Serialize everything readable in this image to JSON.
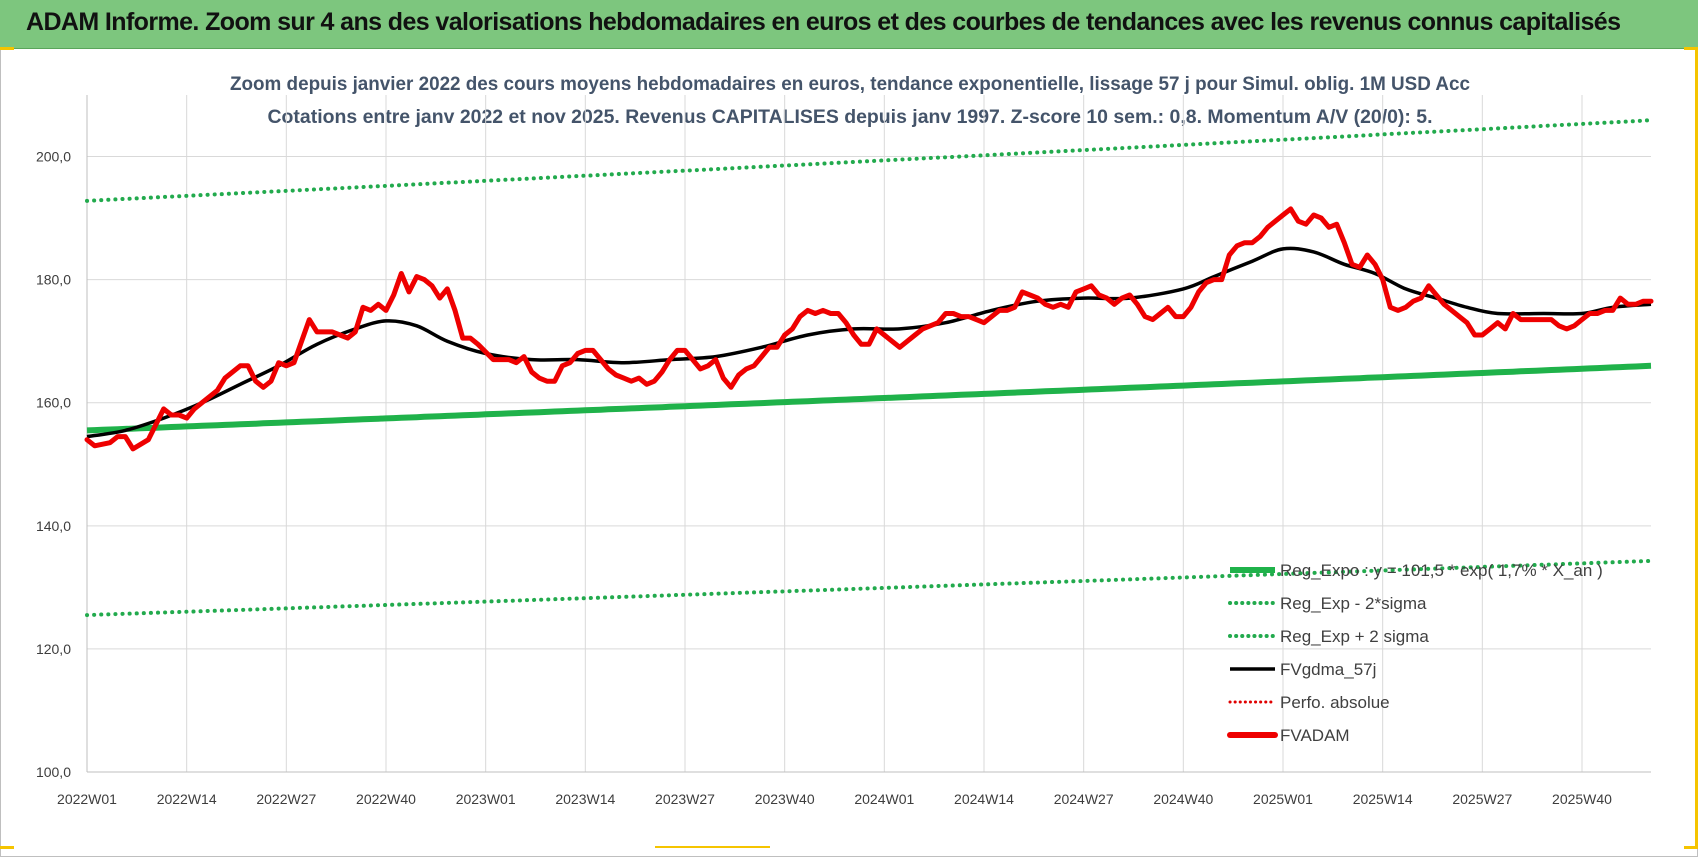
{
  "banner": {
    "title": "ADAM Informe. Zoom sur 4 ans des valorisations hebdomadaires en euros et des courbes de tendances avec les revenus connus capitalisés"
  },
  "colors": {
    "banner_bg": "#7dc67e",
    "reg_expo": "#1fb24a",
    "sigma_bands": "#22aa4d",
    "fvgdma": "#000000",
    "perfo": "#e00000",
    "fvadam": "#ee0000",
    "accent": "#f5c400"
  },
  "chart_data": {
    "type": "line",
    "title_line1": "Zoom depuis janvier 2022 des cours moyens hebdomadaires en euros, tendance exponentielle, lissage 57 j pour Simul. oblig. 1M USD Acc",
    "title_line2": "Cotations entre janv 2022 et nov 2025. Revenus CAPITALISES depuis janv 1997. Z-score 10 sem.: 0,8. Momentum A/V (20/0): 5.",
    "ylim": [
      100,
      210
    ],
    "yticks": [
      "100,0",
      "120,0",
      "140,0",
      "160,0",
      "180,0",
      "200,0"
    ],
    "ytick_values": [
      100,
      120,
      140,
      160,
      180,
      200
    ],
    "x_count": 205,
    "xticks": [
      "2022W01",
      "2022W14",
      "2022W27",
      "2022W40",
      "2023W01",
      "2023W14",
      "2023W27",
      "2023W40",
      "2024W01",
      "2024W14",
      "2024W27",
      "2024W40",
      "2025W01",
      "2025W14",
      "2025W27",
      "2025W40"
    ],
    "xtick_index": [
      0,
      13,
      26,
      39,
      52,
      65,
      78,
      91,
      104,
      117,
      130,
      143,
      156,
      169,
      182,
      195
    ],
    "legend": {
      "position": "right-bottom",
      "entries": [
        {
          "key": "reg_expo",
          "label": "Reg_Expo : y = 101,5 * exp( 1,7% * X_an )"
        },
        {
          "key": "reg_minus",
          "label": "Reg_Exp - 2*sigma"
        },
        {
          "key": "reg_plus",
          "label": "Reg_Exp + 2 sigma"
        },
        {
          "key": "fvgdma",
          "label": "FVgdma_57j"
        },
        {
          "key": "perfo",
          "label": "Perfo. absolue"
        },
        {
          "key": "fvadam",
          "label": "FVADAM"
        }
      ]
    },
    "series": {
      "reg_expo": {
        "name": "Reg_Expo",
        "start": 155.5,
        "end": 166.0
      },
      "reg_minus": {
        "name": "Reg_Exp - 2*sigma",
        "start": 125.5,
        "end": 134.3
      },
      "reg_plus": {
        "name": "Reg_Exp + 2 sigma",
        "start": 192.8,
        "end": 205.9
      },
      "fvgdma": {
        "name": "FVgdma_57j",
        "points": [
          [
            0,
            154.5
          ],
          [
            5,
            155.5
          ],
          [
            10,
            157.5
          ],
          [
            15,
            160
          ],
          [
            20,
            163
          ],
          [
            25,
            166
          ],
          [
            30,
            169.5
          ],
          [
            35,
            172
          ],
          [
            39,
            173.3
          ],
          [
            43,
            172.5
          ],
          [
            47,
            170
          ],
          [
            52,
            168
          ],
          [
            58,
            167
          ],
          [
            64,
            167
          ],
          [
            70,
            166.5
          ],
          [
            76,
            167
          ],
          [
            82,
            167.5
          ],
          [
            88,
            169
          ],
          [
            94,
            171
          ],
          [
            100,
            172
          ],
          [
            106,
            172
          ],
          [
            112,
            173
          ],
          [
            118,
            175
          ],
          [
            124,
            176.5
          ],
          [
            130,
            177
          ],
          [
            136,
            177
          ],
          [
            143,
            178.5
          ],
          [
            147,
            180.5
          ],
          [
            152,
            183
          ],
          [
            156,
            185
          ],
          [
            160,
            184.5
          ],
          [
            164,
            182.5
          ],
          [
            168,
            181
          ],
          [
            172,
            178.5
          ],
          [
            176,
            177
          ],
          [
            180,
            175.5
          ],
          [
            184,
            174.5
          ],
          [
            190,
            174.5
          ],
          [
            195,
            174.5
          ],
          [
            199,
            175.5
          ],
          [
            204,
            176
          ]
        ]
      },
      "fvadam": {
        "name": "FVADAM",
        "points": [
          [
            0,
            154
          ],
          [
            1,
            153
          ],
          [
            3,
            153.5
          ],
          [
            4,
            154.5
          ],
          [
            5,
            154.5
          ],
          [
            6,
            152.5
          ],
          [
            8,
            154
          ],
          [
            10,
            159
          ],
          [
            11,
            158
          ],
          [
            12,
            158
          ],
          [
            13,
            157.5
          ],
          [
            14,
            159
          ],
          [
            15,
            160
          ],
          [
            17,
            162
          ],
          [
            18,
            164
          ],
          [
            20,
            166
          ],
          [
            21,
            166
          ],
          [
            22,
            163.5
          ],
          [
            23,
            162.5
          ],
          [
            24,
            163.5
          ],
          [
            25,
            166.5
          ],
          [
            26,
            166
          ],
          [
            27,
            166.5
          ],
          [
            29,
            173.5
          ],
          [
            30,
            171.5
          ],
          [
            32,
            171.5
          ],
          [
            33,
            171
          ],
          [
            34,
            170.5
          ],
          [
            35,
            171.5
          ],
          [
            36,
            175.5
          ],
          [
            37,
            175
          ],
          [
            38,
            176
          ],
          [
            39,
            175
          ],
          [
            40,
            177.5
          ],
          [
            41,
            181
          ],
          [
            42,
            178
          ],
          [
            43,
            180.5
          ],
          [
            44,
            180
          ],
          [
            45,
            179
          ],
          [
            46,
            177
          ],
          [
            47,
            178.5
          ],
          [
            48,
            175
          ],
          [
            49,
            170.5
          ],
          [
            50,
            170.5
          ],
          [
            51,
            169.5
          ],
          [
            53,
            167
          ],
          [
            55,
            167
          ],
          [
            56,
            166.5
          ],
          [
            57,
            167.5
          ],
          [
            58,
            165
          ],
          [
            59,
            164
          ],
          [
            60,
            163.5
          ],
          [
            61,
            163.5
          ],
          [
            62,
            166
          ],
          [
            63,
            166.5
          ],
          [
            64,
            168
          ],
          [
            65,
            168.5
          ],
          [
            66,
            168.5
          ],
          [
            67,
            167
          ],
          [
            68,
            165.5
          ],
          [
            69,
            164.5
          ],
          [
            70,
            164
          ],
          [
            71,
            163.5
          ],
          [
            72,
            164
          ],
          [
            73,
            163
          ],
          [
            74,
            163.5
          ],
          [
            75,
            165
          ],
          [
            76,
            167
          ],
          [
            77,
            168.5
          ],
          [
            78,
            168.5
          ],
          [
            79,
            167
          ],
          [
            80,
            165.5
          ],
          [
            81,
            166
          ],
          [
            82,
            167
          ],
          [
            83,
            164
          ],
          [
            84,
            162.5
          ],
          [
            85,
            164.5
          ],
          [
            86,
            165.5
          ],
          [
            87,
            166
          ],
          [
            88,
            167.5
          ],
          [
            89,
            169
          ],
          [
            90,
            169
          ],
          [
            91,
            171
          ],
          [
            92,
            172
          ],
          [
            93,
            174
          ],
          [
            94,
            175
          ],
          [
            95,
            174.5
          ],
          [
            96,
            175
          ],
          [
            97,
            174.5
          ],
          [
            98,
            174.5
          ],
          [
            99,
            173
          ],
          [
            100,
            171
          ],
          [
            101,
            169.5
          ],
          [
            102,
            169.5
          ],
          [
            103,
            172
          ],
          [
            104,
            171
          ],
          [
            105,
            170
          ],
          [
            106,
            169
          ],
          [
            107,
            170
          ],
          [
            108,
            171
          ],
          [
            109,
            172
          ],
          [
            110,
            172.5
          ],
          [
            111,
            173
          ],
          [
            112,
            174.5
          ],
          [
            113,
            174.5
          ],
          [
            114,
            174
          ],
          [
            115,
            174
          ],
          [
            116,
            173.5
          ],
          [
            117,
            173
          ],
          [
            118,
            174
          ],
          [
            119,
            175
          ],
          [
            120,
            175
          ],
          [
            121,
            175.5
          ],
          [
            122,
            178
          ],
          [
            123,
            177.5
          ],
          [
            124,
            177
          ],
          [
            125,
            176
          ],
          [
            126,
            175.5
          ],
          [
            127,
            176
          ],
          [
            128,
            175.5
          ],
          [
            129,
            178
          ],
          [
            130,
            178.5
          ],
          [
            131,
            179
          ],
          [
            132,
            177.5
          ],
          [
            133,
            177
          ],
          [
            134,
            176
          ],
          [
            135,
            177
          ],
          [
            136,
            177.5
          ],
          [
            137,
            176
          ],
          [
            138,
            174
          ],
          [
            139,
            173.5
          ],
          [
            140,
            174.5
          ],
          [
            141,
            175.5
          ],
          [
            142,
            174
          ],
          [
            143,
            174
          ],
          [
            144,
            175.5
          ],
          [
            145,
            178
          ],
          [
            146,
            179.5
          ],
          [
            147,
            180
          ],
          [
            148,
            180
          ],
          [
            149,
            184
          ],
          [
            150,
            185.5
          ],
          [
            151,
            186
          ],
          [
            152,
            186
          ],
          [
            153,
            187
          ],
          [
            154,
            188.5
          ],
          [
            155,
            189.5
          ],
          [
            156,
            190.5
          ],
          [
            157,
            191.5
          ],
          [
            158,
            189.5
          ],
          [
            159,
            189
          ],
          [
            160,
            190.5
          ],
          [
            161,
            190
          ],
          [
            162,
            188.5
          ],
          [
            163,
            189
          ],
          [
            164,
            186
          ],
          [
            165,
            182.5
          ],
          [
            166,
            182
          ],
          [
            167,
            184
          ],
          [
            168,
            182.5
          ],
          [
            169,
            180
          ],
          [
            170,
            175.5
          ],
          [
            171,
            175
          ],
          [
            172,
            175.5
          ],
          [
            173,
            176.5
          ],
          [
            174,
            177
          ],
          [
            175,
            179
          ],
          [
            176,
            177.5
          ],
          [
            177,
            176
          ],
          [
            178,
            175
          ],
          [
            179,
            174
          ],
          [
            180,
            173
          ],
          [
            181,
            171
          ],
          [
            182,
            171
          ],
          [
            183,
            172
          ],
          [
            184,
            173
          ],
          [
            185,
            172
          ],
          [
            186,
            174.5
          ],
          [
            187,
            173.5
          ],
          [
            188,
            173.5
          ],
          [
            189,
            173.5
          ],
          [
            190,
            173.5
          ],
          [
            191,
            173.5
          ],
          [
            192,
            172.5
          ],
          [
            193,
            172
          ],
          [
            194,
            172.5
          ],
          [
            195,
            173.5
          ],
          [
            196,
            174.5
          ],
          [
            197,
            174.5
          ],
          [
            198,
            175
          ],
          [
            199,
            175
          ],
          [
            200,
            177
          ],
          [
            201,
            176
          ],
          [
            202,
            176
          ],
          [
            203,
            176.5
          ],
          [
            204,
            176.5
          ]
        ]
      }
    }
  }
}
